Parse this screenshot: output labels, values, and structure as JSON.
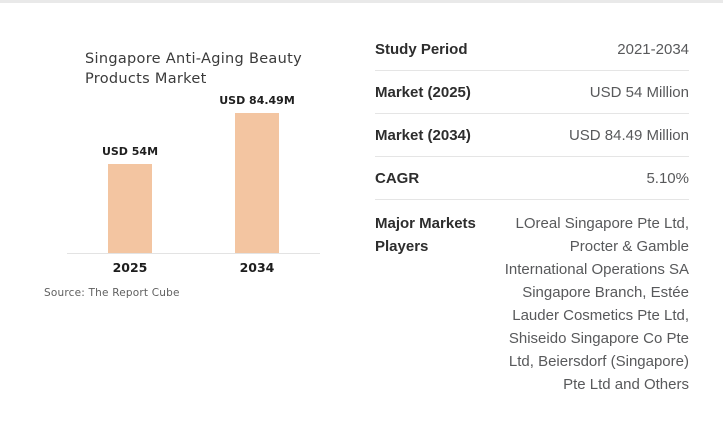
{
  "chart_data": [
    {
      "type": "bar",
      "title": "Singapore Anti-Aging Beauty Products Market",
      "categories": [
        "2025",
        "2034"
      ],
      "values": [
        54,
        84.49
      ],
      "bar_labels": [
        "USD 54M",
        "USD 84.49M"
      ],
      "unit": "USD Million",
      "bar_color": "#F3C5A1",
      "ylim": [
        0,
        84.49
      ],
      "grid": false,
      "legend": "none",
      "source": "Source: The Report Cube"
    },
    {
      "type": "table",
      "rows": [
        {
          "label": "Study Period",
          "value": "2021-2034"
        },
        {
          "label": "Market (2025)",
          "value": "USD 54 Million"
        },
        {
          "label": "Market (2034)",
          "value": "USD 84.49 Million"
        },
        {
          "label": "CAGR",
          "value": "5.10%"
        },
        {
          "label": "Major Markets Players",
          "value": "LOreal Singapore Pte Ltd, Procter & Gamble International Operations SA Singapore Branch, Estée Lauder Cosmetics Pte Ltd, Shiseido Singapore Co Pte Ltd, Beiersdorf (Singapore) Pte Ltd and Others"
        }
      ]
    }
  ],
  "colors": {
    "bar": "#F3C5A1",
    "divider": "#e5e5e5",
    "axis": "#e3e3e3",
    "title_text": "#3b3b3b",
    "value_text": "#58595b",
    "label_text": "#2d2d2d"
  }
}
